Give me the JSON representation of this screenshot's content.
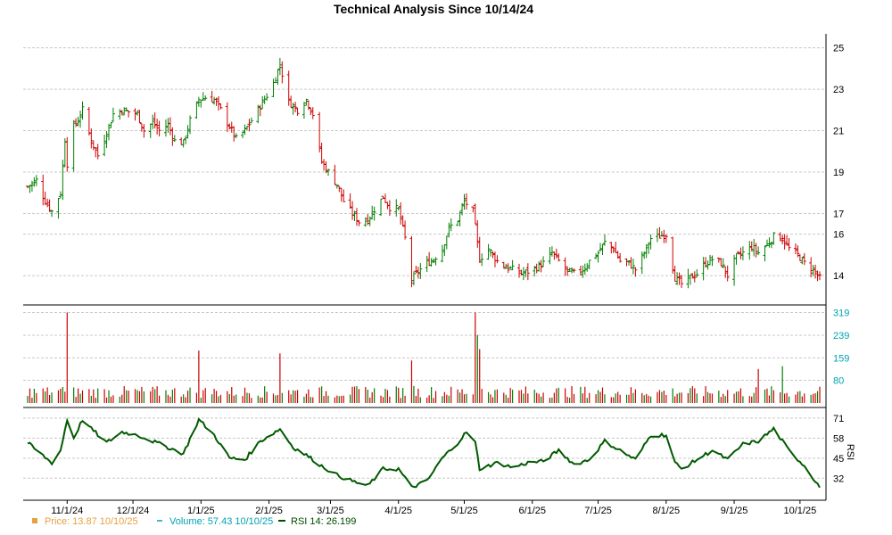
{
  "chart_data": {
    "type": "stock-ohlc-with-volume-and-rsi",
    "title": "Technical Analysis Since 10/14/24",
    "x_labels": [
      "11/1/24",
      "12/1/24",
      "1/1/25",
      "2/1/25",
      "3/1/25",
      "4/1/25",
      "5/1/25",
      "6/1/25",
      "7/1/25",
      "8/1/25",
      "9/1/25",
      "10/1/25"
    ],
    "price_axis": {
      "ticks": [
        14,
        16,
        17,
        19,
        21,
        23,
        25
      ],
      "ylim": [
        12.8,
        25.2
      ]
    },
    "volume_axis": {
      "ticks": [
        80,
        159,
        239,
        319
      ],
      "ylim": [
        0,
        330
      ]
    },
    "rsi_axis": {
      "ticks": [
        32,
        45,
        58,
        71
      ],
      "ylim": [
        20,
        75
      ],
      "label": "RSI"
    },
    "price_anchors": [
      [
        "10/14/24",
        18.3
      ],
      [
        "10/18/24",
        18.6
      ],
      [
        "10/22/24",
        17.6
      ],
      [
        "10/25/24",
        17.1
      ],
      [
        "10/29/24",
        18.0
      ],
      [
        "10/31/24",
        20.6
      ],
      [
        "11/1/24",
        19.4
      ],
      [
        "11/4/24",
        21.2
      ],
      [
        "11/6/24",
        21.5
      ],
      [
        "11/8/24",
        22.0
      ],
      [
        "11/12/24",
        20.5
      ],
      [
        "11/15/24",
        19.8
      ],
      [
        "11/19/24",
        20.9
      ],
      [
        "11/22/24",
        21.8
      ],
      [
        "11/26/24",
        22.0
      ],
      [
        "12/3/24",
        21.8
      ],
      [
        "12/6/24",
        21.0
      ],
      [
        "12/10/24",
        21.4
      ],
      [
        "12/13/24",
        21.0
      ],
      [
        "12/17/24",
        21.3
      ],
      [
        "12/20/24",
        20.5
      ],
      [
        "12/24/24",
        20.4
      ],
      [
        "12/27/24",
        21.5
      ],
      [
        "12/31/24",
        22.5
      ],
      [
        "1/3/25",
        22.6
      ],
      [
        "1/7/25",
        22.5
      ],
      [
        "1/10/25",
        22.0
      ],
      [
        "1/14/25",
        21.2
      ],
      [
        "1/17/25",
        20.6
      ],
      [
        "1/21/25",
        21.0
      ],
      [
        "1/24/25",
        21.5
      ],
      [
        "1/28/25",
        22.2
      ],
      [
        "1/31/25",
        22.7
      ],
      [
        "2/3/25",
        23.3
      ],
      [
        "2/6/25",
        24.2
      ],
      [
        "2/10/25",
        22.4
      ],
      [
        "2/14/25",
        22.0
      ],
      [
        "2/18/25",
        22.5
      ],
      [
        "2/21/25",
        21.8
      ],
      [
        "2/25/25",
        19.5
      ],
      [
        "2/28/25",
        19.0
      ],
      [
        "3/4/25",
        18.4
      ],
      [
        "3/7/25",
        17.6
      ],
      [
        "3/11/25",
        17.0
      ],
      [
        "3/14/25",
        16.6
      ],
      [
        "3/18/25",
        16.7
      ],
      [
        "3/21/25",
        17.2
      ],
      [
        "3/25/25",
        17.8
      ],
      [
        "3/28/25",
        17.3
      ],
      [
        "4/1/25",
        17.2
      ],
      [
        "4/4/25",
        15.8
      ],
      [
        "4/7/25",
        13.8
      ],
      [
        "4/10/25",
        14.2
      ],
      [
        "4/14/25",
        14.6
      ],
      [
        "4/17/25",
        14.8
      ],
      [
        "4/21/25",
        15.3
      ],
      [
        "4/24/25",
        16.3
      ],
      [
        "4/28/25",
        16.7
      ],
      [
        "5/1/25",
        17.6
      ],
      [
        "5/5/25",
        17.1
      ],
      [
        "5/8/25",
        14.8
      ],
      [
        "5/12/25",
        15.3
      ],
      [
        "5/16/25",
        14.7
      ],
      [
        "5/20/25",
        14.4
      ],
      [
        "5/23/25",
        14.3
      ],
      [
        "5/27/25",
        14.1
      ],
      [
        "5/30/25",
        14.2
      ],
      [
        "6/3/25",
        14.4
      ],
      [
        "6/6/25",
        14.6
      ],
      [
        "6/10/25",
        15.1
      ],
      [
        "6/13/25",
        14.7
      ],
      [
        "6/17/25",
        14.2
      ],
      [
        "6/20/25",
        14.1
      ],
      [
        "6/24/25",
        14.3
      ],
      [
        "6/27/25",
        14.7
      ],
      [
        "7/1/25",
        15.1
      ],
      [
        "7/4/25",
        15.6
      ],
      [
        "7/8/25",
        15.3
      ],
      [
        "7/11/25",
        14.7
      ],
      [
        "7/15/25",
        14.6
      ],
      [
        "7/18/25",
        14.3
      ],
      [
        "7/22/25",
        15.1
      ],
      [
        "7/25/25",
        15.8
      ],
      [
        "7/29/25",
        15.9
      ],
      [
        "8/1/25",
        16.0
      ],
      [
        "8/5/25",
        13.9
      ],
      [
        "8/8/25",
        13.6
      ],
      [
        "8/12/25",
        13.9
      ],
      [
        "8/15/25",
        14.1
      ],
      [
        "8/19/25",
        14.6
      ],
      [
        "8/22/25",
        14.8
      ],
      [
        "8/26/25",
        14.6
      ],
      [
        "8/29/25",
        14.0
      ],
      [
        "9/2/25",
        14.9
      ],
      [
        "9/5/25",
        15.1
      ],
      [
        "9/9/25",
        15.4
      ],
      [
        "9/12/25",
        15.1
      ],
      [
        "9/16/25",
        15.5
      ],
      [
        "9/19/25",
        15.9
      ],
      [
        "9/23/25",
        15.8
      ],
      [
        "9/26/25",
        15.3
      ],
      [
        "9/30/25",
        15.0
      ],
      [
        "10/3/25",
        14.6
      ],
      [
        "10/7/25",
        14.3
      ],
      [
        "10/10/25",
        13.87
      ]
    ],
    "volume_anchors": [
      [
        "10/14/24",
        25
      ],
      [
        "10/31/24",
        40
      ],
      [
        "11/1/24",
        319
      ],
      [
        "11/4/24",
        55
      ],
      [
        "12/31/24",
        185
      ],
      [
        "1/2/25",
        45
      ],
      [
        "2/6/25",
        175
      ],
      [
        "2/10/25",
        45
      ],
      [
        "4/7/25",
        150
      ],
      [
        "4/8/25",
        60
      ],
      [
        "5/6/25",
        319
      ],
      [
        "5/7/25",
        240
      ],
      [
        "5/8/25",
        190
      ],
      [
        "5/9/25",
        50
      ],
      [
        "9/12/25",
        120
      ],
      [
        "9/23/25",
        130
      ],
      [
        "10/10/25",
        57.43
      ]
    ],
    "rsi_anchors": [
      [
        "10/14/24",
        55
      ],
      [
        "10/18/24",
        50
      ],
      [
        "10/25/24",
        42
      ],
      [
        "10/29/24",
        50
      ],
      [
        "11/1/24",
        70
      ],
      [
        "11/4/24",
        58
      ],
      [
        "11/8/24",
        70
      ],
      [
        "11/12/24",
        64
      ],
      [
        "11/19/24",
        55
      ],
      [
        "11/26/24",
        62
      ],
      [
        "12/3/24",
        60
      ],
      [
        "12/10/24",
        56
      ],
      [
        "12/17/24",
        52
      ],
      [
        "12/24/24",
        48
      ],
      [
        "12/31/24",
        70
      ],
      [
        "1/7/25",
        60
      ],
      [
        "1/14/25",
        45
      ],
      [
        "1/21/25",
        44
      ],
      [
        "1/28/25",
        56
      ],
      [
        "2/6/25",
        64
      ],
      [
        "2/12/25",
        52
      ],
      [
        "2/18/25",
        47
      ],
      [
        "2/25/25",
        40
      ],
      [
        "3/4/25",
        34
      ],
      [
        "3/11/25",
        30
      ],
      [
        "3/18/25",
        27
      ],
      [
        "3/25/25",
        38
      ],
      [
        "4/1/25",
        38
      ],
      [
        "4/7/25",
        26
      ],
      [
        "4/14/25",
        30
      ],
      [
        "4/21/25",
        45
      ],
      [
        "4/28/25",
        55
      ],
      [
        "5/2/25",
        62
      ],
      [
        "5/6/25",
        55
      ],
      [
        "5/8/25",
        38
      ],
      [
        "5/16/25",
        42
      ],
      [
        "5/23/25",
        39
      ],
      [
        "5/30/25",
        42
      ],
      [
        "6/6/25",
        43
      ],
      [
        "6/13/25",
        50
      ],
      [
        "6/20/25",
        41
      ],
      [
        "6/27/25",
        44
      ],
      [
        "7/4/25",
        56
      ],
      [
        "7/11/25",
        50
      ],
      [
        "7/18/25",
        44
      ],
      [
        "7/25/25",
        60
      ],
      [
        "8/1/25",
        60
      ],
      [
        "8/5/25",
        42
      ],
      [
        "8/8/25",
        38
      ],
      [
        "8/15/25",
        44
      ],
      [
        "8/22/25",
        50
      ],
      [
        "8/29/25",
        44
      ],
      [
        "9/5/25",
        54
      ],
      [
        "9/12/25",
        56
      ],
      [
        "9/19/25",
        64
      ],
      [
        "9/26/25",
        50
      ],
      [
        "10/3/25",
        40
      ],
      [
        "10/10/25",
        26.199
      ]
    ],
    "colors": {
      "up": "#008000",
      "down": "#CC0000",
      "rsi_line": "#005A00",
      "grid": "#C8C8C8",
      "price_legend": "#E8A040",
      "volume_legend": "#00A3B4",
      "rsi_legend": "#004D00"
    },
    "legend": [
      {
        "label": "Price: 13.87  10/10/25",
        "color": "#E8A040",
        "icon": "square-marker"
      },
      {
        "label": "Volume: 57.43  10/10/25",
        "color": "#00A3B4",
        "icon": "dash-marker"
      },
      {
        "label": "RSI 14: 26.199",
        "color": "#004D00",
        "icon": "line-marker"
      }
    ]
  }
}
